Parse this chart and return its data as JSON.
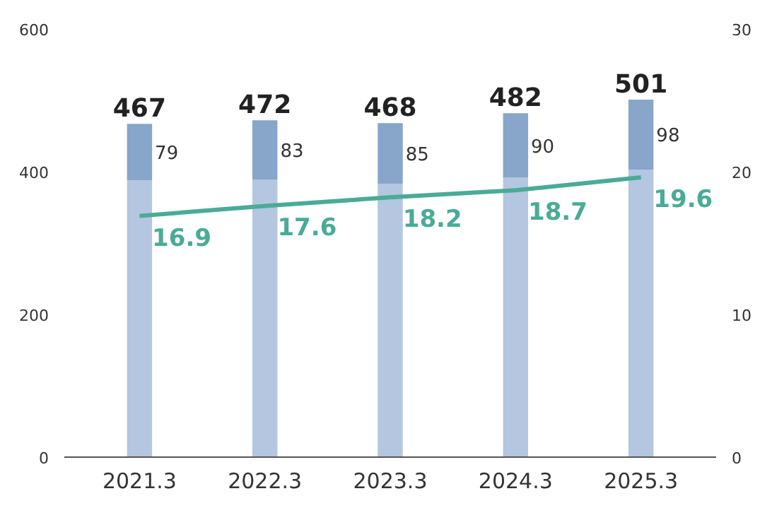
{
  "chart_data": {
    "type": "bar",
    "stacked": true,
    "categories": [
      "2021.3",
      "2022.3",
      "2023.3",
      "2024.3",
      "2025.3"
    ],
    "series": [
      {
        "color": "#b4c6e0",
        "values": [
          388,
          389,
          383,
          392,
          403
        ]
      },
      {
        "color": "#87a6ca",
        "values": [
          79,
          83,
          85,
          90,
          98
        ],
        "value_labels": [
          "79",
          "83",
          "85",
          "90",
          "98"
        ]
      },
      {
        "type": "line",
        "axis": "y2",
        "color": "#4aab97",
        "values": [
          16.9,
          17.6,
          18.2,
          18.7,
          19.6
        ],
        "value_labels": [
          "16.9",
          "17.6",
          "18.2",
          "18.7",
          "19.6"
        ]
      }
    ],
    "totals": [
      "467",
      "472",
      "468",
      "482",
      "501"
    ],
    "ylim": [
      0,
      600
    ],
    "yticks": [
      0,
      200,
      400,
      600
    ],
    "y2lim": [
      0,
      30
    ],
    "y2ticks": [
      0,
      10,
      20,
      30
    ],
    "grid": false,
    "marker": "none"
  }
}
